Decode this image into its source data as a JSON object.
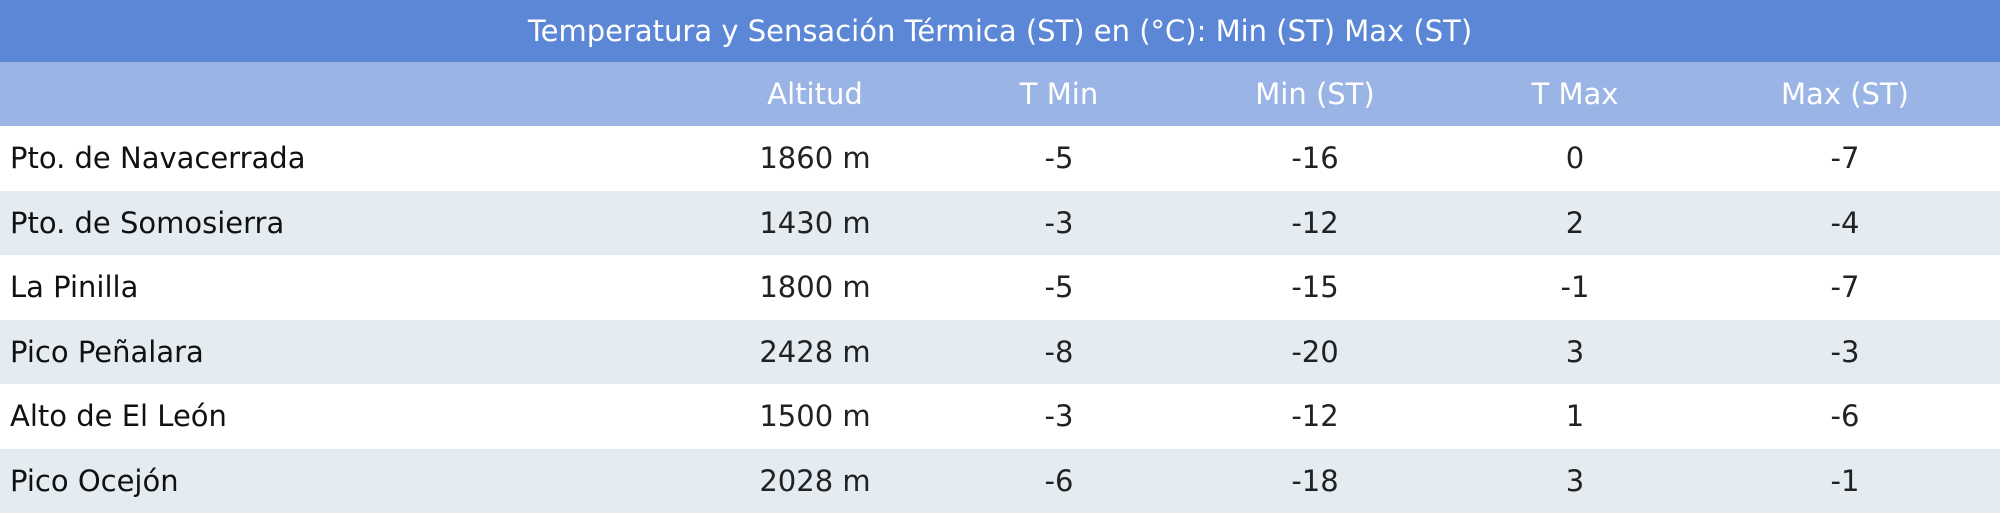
{
  "table": {
    "title": "Temperatura y Sensación Térmica (ST) en (°C): Min (ST) Max (ST)",
    "columns": [
      "Altitud",
      "T Min",
      "Min (ST)",
      "T Max",
      "Max (ST)"
    ],
    "rows": [
      [
        "Pto. de Navacerrada",
        "1860 m",
        "-5",
        "-16",
        "0",
        "-7"
      ],
      [
        "Pto. de Somosierra",
        "1430 m",
        "-3",
        "-12",
        "2",
        "-4"
      ],
      [
        "La Pinilla",
        "1800 m",
        "-5",
        "-15",
        "-1",
        "-7"
      ],
      [
        "Pico Peñalara",
        "2428 m",
        "-8",
        "-20",
        "3",
        "-3"
      ],
      [
        "Alto de El León",
        "1500 m",
        "-3",
        "-12",
        "1",
        "-6"
      ],
      [
        "Pico Ocejón",
        "2028 m",
        "-6",
        "-18",
        "3",
        "-1"
      ]
    ]
  }
}
